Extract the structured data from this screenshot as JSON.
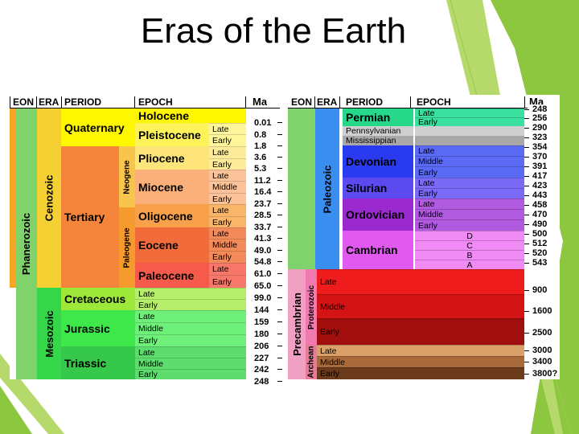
{
  "slide": {
    "title": "Eras of the Earth",
    "theme_colors": {
      "accent": "#8dc63f",
      "accent_light": "#b5d96a",
      "accent_dark": "#6fa82e"
    }
  },
  "left_table": {
    "headers": {
      "eon": "EON",
      "era": "ERA",
      "period": "PERIOD",
      "epoch": "EPOCH",
      "ma": "Ma"
    },
    "eon": "Phanerozoic",
    "eras": [
      "Cenozoic",
      "Mesozoic"
    ],
    "subperiods": [
      "Neogene",
      "Paleogene"
    ],
    "periods": [
      "Quaternary",
      "Tertiary",
      "Cretaceous",
      "Jurassic",
      "Triassic"
    ],
    "epochs": [
      "Holocene",
      "Pleistocene",
      "Pliocene",
      "Miocene",
      "Oligocene",
      "Eocene",
      "Paleocene"
    ],
    "subepochs": [
      "Late",
      "Early",
      "Late",
      "Early",
      "Late",
      "Middle",
      "Early",
      "Late",
      "Early",
      "Late",
      "Middle",
      "Early",
      "Late",
      "Early",
      "Late",
      "Early",
      "Late",
      "Middle",
      "Early",
      "Late",
      "Middle",
      "Early"
    ],
    "ma": [
      "0.01",
      "0.8",
      "1.8",
      "3.6",
      "5.3",
      "11.2",
      "16.4",
      "23.7",
      "28.5",
      "33.7",
      "41.3",
      "49.0",
      "54.8",
      "61.0",
      "65.0",
      "99.0",
      "144",
      "159",
      "180",
      "206",
      "227",
      "242",
      "248"
    ]
  },
  "right_table": {
    "headers": {
      "eon": "EON",
      "era": "ERA",
      "period": "PERIOD",
      "epoch": "EPOCH",
      "ma": "Ma"
    },
    "eons": [
      "Precambrian",
      "Archean"
    ],
    "eras": [
      "Paleozoic",
      "Proterozoic"
    ],
    "periods": [
      "Permian",
      "Pennsylvanian",
      "Mississippian",
      "Devonian",
      "Silurian",
      "Ordovician",
      "Cambrian"
    ],
    "epochs": [
      "Late",
      "Early",
      "Late",
      "Middle",
      "Early",
      "Late",
      "Early",
      "Late",
      "Middle",
      "Early",
      "D",
      "C",
      "B",
      "A"
    ],
    "precambrian_subdivisions": [
      "Late",
      "Middle",
      "Early",
      "Late",
      "Middle",
      "Early"
    ],
    "ma": [
      "248",
      "256",
      "290",
      "323",
      "354",
      "370",
      "391",
      "417",
      "423",
      "443",
      "458",
      "470",
      "490",
      "500",
      "512",
      "520",
      "543",
      "900",
      "1600",
      "2500",
      "3000",
      "3400",
      "3800?"
    ]
  }
}
